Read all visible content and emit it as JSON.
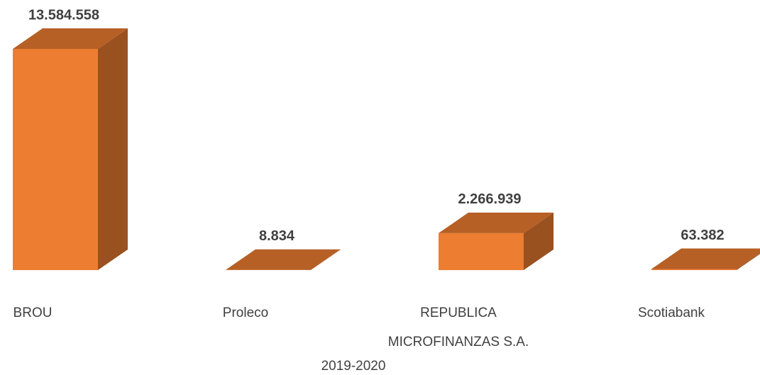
{
  "chart_data": {
    "type": "bar3d",
    "categories": [
      "BROU",
      "Proleco",
      "REPUBLICA MICROFINANZAS S.A.",
      "Scotiabank"
    ],
    "values": [
      13584558,
      8834,
      2266939,
      63382
    ],
    "value_labels": [
      "13.584.558",
      "8.834",
      "2.266.939",
      "63.382"
    ],
    "color": "#ED7D31",
    "x_label": "2019-2020"
  }
}
